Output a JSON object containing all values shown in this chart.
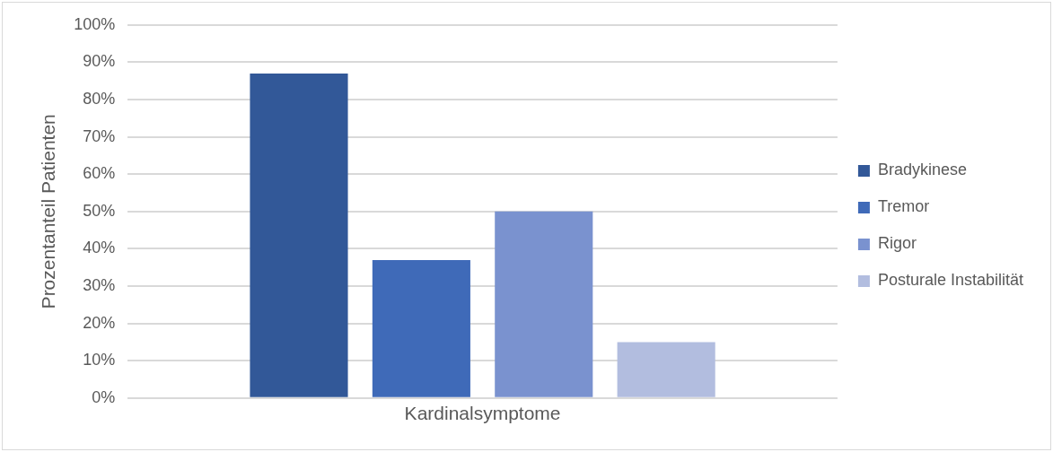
{
  "chart_data": {
    "type": "bar",
    "ylabel": "Prozentanteil Patienten",
    "categories": [
      "Kardinalsymptome"
    ],
    "series": [
      {
        "name": "Bradykinese",
        "color": "#325898",
        "values": [
          87
        ]
      },
      {
        "name": "Tremor",
        "color": "#3f6ab8",
        "values": [
          37
        ]
      },
      {
        "name": "Rigor",
        "color": "#7a92cf",
        "values": [
          50
        ]
      },
      {
        "name": "Posturale Instabilität",
        "color": "#b2bddf",
        "values": [
          15
        ]
      }
    ],
    "ylim": [
      0,
      100
    ],
    "yticks": [
      {
        "value": 0,
        "label": "0%"
      },
      {
        "value": 10,
        "label": "10%"
      },
      {
        "value": 20,
        "label": "20%"
      },
      {
        "value": 30,
        "label": "30%"
      },
      {
        "value": 40,
        "label": "40%"
      },
      {
        "value": 50,
        "label": "50%"
      },
      {
        "value": 60,
        "label": "60%"
      },
      {
        "value": 70,
        "label": "70%"
      },
      {
        "value": 80,
        "label": "80%"
      },
      {
        "value": 90,
        "label": "90%"
      },
      {
        "value": 100,
        "label": "100%"
      }
    ],
    "grid": "y",
    "legend": "right"
  }
}
